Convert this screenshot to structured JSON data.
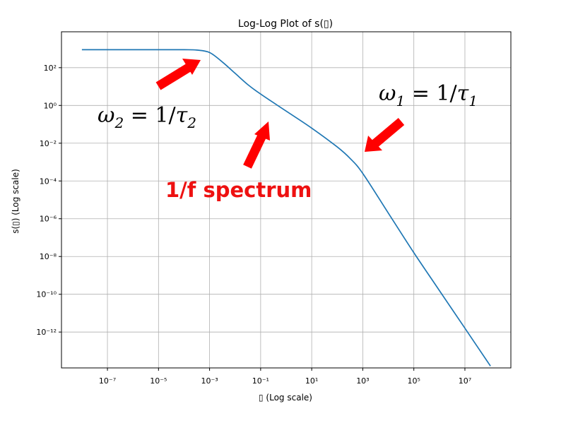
{
  "chart_data": {
    "type": "line",
    "title": "Log-Log Plot of s(▯)",
    "xlabel": "▯ (Log scale)",
    "ylabel": "s(▯) (Log scale)",
    "xscale": "log",
    "yscale": "log",
    "xlim_exp": [
      -8.8,
      8.8
    ],
    "ylim_exp": [
      -13.9,
      3.9
    ],
    "grid": true,
    "x_ticks": [
      {
        "exp": -7,
        "label": "10⁻⁷"
      },
      {
        "exp": -5,
        "label": "10⁻⁵"
      },
      {
        "exp": -3,
        "label": "10⁻³"
      },
      {
        "exp": -1,
        "label": "10⁻¹"
      },
      {
        "exp": 1,
        "label": "10¹"
      },
      {
        "exp": 3,
        "label": "10³"
      },
      {
        "exp": 5,
        "label": "10⁵"
      },
      {
        "exp": 7,
        "label": "10⁷"
      }
    ],
    "y_ticks": [
      {
        "exp": 2,
        "label": "10²"
      },
      {
        "exp": 0,
        "label": "10⁰"
      },
      {
        "exp": -2,
        "label": "10⁻²"
      },
      {
        "exp": -4,
        "label": "10⁻⁴"
      },
      {
        "exp": -6,
        "label": "10⁻⁶"
      },
      {
        "exp": -8,
        "label": "10⁻⁸"
      },
      {
        "exp": -10,
        "label": "10⁻¹⁰"
      },
      {
        "exp": -12,
        "label": "10⁻¹²"
      }
    ],
    "series": [
      {
        "color": "#1f77b4",
        "x_exp": [
          -8,
          -5,
          -4,
          -3.5,
          -3,
          -2.5,
          -2,
          -1.5,
          -1,
          0,
          1,
          2,
          2.5,
          3,
          4,
          5,
          6,
          7,
          8
        ],
        "y_exp": [
          2.95,
          2.95,
          2.95,
          2.93,
          2.8,
          2.3,
          1.7,
          1.1,
          0.6,
          -0.3,
          -1.2,
          -2.2,
          -2.8,
          -3.6,
          -5.7,
          -7.8,
          -9.8,
          -11.8,
          -13.8
        ]
      }
    ],
    "annotations": {
      "omega2": {
        "sym": "ω",
        "sub": "2",
        "eq": " = 1/",
        "tau": "τ",
        "tsub": "2"
      },
      "omega1": {
        "sym": "ω",
        "sub": "1",
        "eq": " = 1/",
        "tau": "τ",
        "tsub": "1"
      },
      "spectrum_label": "1/f spectrum",
      "arrow_color": "#ff0000"
    }
  }
}
